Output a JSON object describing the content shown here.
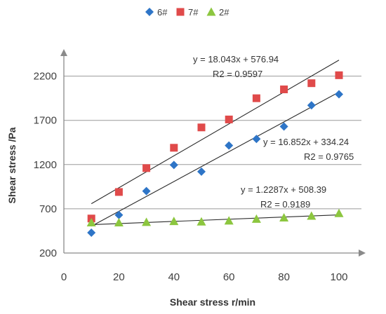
{
  "chart_data": {
    "type": "scatter",
    "xlabel": "Shear stress r/min",
    "ylabel": "Shear stress /Pa",
    "xlim": [
      0,
      110
    ],
    "ylim": [
      200,
      2500
    ],
    "xticks": [
      0,
      20,
      40,
      60,
      80,
      100
    ],
    "yticks": [
      200,
      700,
      1200,
      1700,
      2200
    ],
    "grid": "horizontal",
    "legend_position": "top-center",
    "x": [
      10,
      20,
      30,
      40,
      50,
      60,
      70,
      80,
      90,
      100
    ],
    "series": [
      {
        "name": "6#",
        "marker": "diamond",
        "color": "#2e75c7",
        "values": [
          430,
          630,
          900,
          1195,
          1120,
          1415,
          1490,
          1630,
          1870,
          1995
        ],
        "trendline": {
          "slope": 16.852,
          "intercept": 334.24,
          "equation": "y = 16.852x + 334.24",
          "r2": "R2 = 0.9765",
          "x_range": [
            10,
            100
          ]
        }
      },
      {
        "name": "7#",
        "marker": "square",
        "color": "#e04a4a",
        "values": [
          590,
          890,
          1160,
          1390,
          1620,
          1710,
          1950,
          2050,
          2120,
          2210
        ],
        "trendline": {
          "slope": 18.043,
          "intercept": 576.94,
          "equation": "y = 18.043x + 576.94",
          "r2": "R2 = 0.9597",
          "x_range": [
            10,
            100
          ]
        }
      },
      {
        "name": "2#",
        "marker": "triangle",
        "color": "#8cc63f",
        "values": [
          545,
          545,
          550,
          560,
          555,
          565,
          585,
          600,
          620,
          650
        ],
        "trendline": {
          "slope": 1.2287,
          "intercept": 508.39,
          "equation": "y = 1.2287x + 508.39",
          "r2": "R2 = 0.9189",
          "x_range": [
            10,
            100
          ]
        }
      }
    ]
  }
}
